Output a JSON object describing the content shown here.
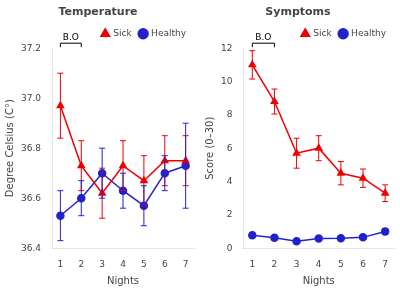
{
  "chart_data": [
    {
      "type": "line",
      "title": "Temperature",
      "xlabel": "Nights",
      "ylabel": "Degree Celsius (C°)",
      "x": [
        1,
        2,
        3,
        4,
        5,
        6,
        7
      ],
      "xlim": [
        0.6,
        7.4
      ],
      "xticks": [
        1,
        2,
        3,
        4,
        5,
        6,
        7
      ],
      "ylim": [
        36.4,
        37.2
      ],
      "yticks": [
        36.4,
        36.6,
        36.8,
        {
          "value": 37.0,
          "label": "37.0"
        },
        37.2
      ],
      "grid": false,
      "legend": "upper right",
      "series": [
        {
          "name": "Sick",
          "color": "#EE0000",
          "marker": "triangle",
          "values": [
            36.97,
            36.73,
            36.62,
            36.73,
            36.67,
            36.75,
            36.75
          ],
          "yerr": [
            0.13,
            0.1,
            0.1,
            0.1,
            0.1,
            0.1,
            0.1
          ]
        },
        {
          "name": "Healthy",
          "color": "#2222CC",
          "marker": "circle",
          "values": [
            36.53,
            36.6,
            36.7,
            36.63,
            36.57,
            36.7,
            36.73
          ],
          "yerr": [
            0.1,
            0.07,
            0.1,
            0.07,
            0.08,
            0.07,
            0.17
          ]
        }
      ],
      "annotations": [
        {
          "text": "B.O"
        }
      ]
    },
    {
      "type": "line",
      "title": "Symptoms",
      "xlabel": "Nights",
      "ylabel": "Score (0–30)",
      "x": [
        1,
        2,
        3,
        4,
        5,
        6,
        7
      ],
      "xlim": [
        0.6,
        7.4
      ],
      "xticks": [
        1,
        2,
        3,
        4,
        5,
        6,
        7
      ],
      "ylim": [
        0,
        12
      ],
      "yticks": [
        0,
        2,
        4,
        6,
        8,
        10,
        12
      ],
      "grid": false,
      "legend": "upper right",
      "series": [
        {
          "name": "Sick",
          "color": "#EE0000",
          "marker": "triangle",
          "values": [
            11.0,
            8.8,
            5.7,
            6.0,
            4.5,
            4.2,
            3.3
          ],
          "yerr": [
            0.85,
            0.75,
            0.9,
            0.75,
            0.7,
            0.55,
            0.5
          ]
        },
        {
          "name": "Healthy",
          "color": "#2222CC",
          "marker": "circle",
          "values": [
            0.78,
            0.62,
            0.42,
            0.58,
            0.6,
            0.65,
            1.0
          ],
          "yerr": [
            0.14,
            0.12,
            0.1,
            0.12,
            0.12,
            0.12,
            0.18
          ]
        }
      ],
      "annotations": [
        {
          "text": "B.O"
        }
      ]
    }
  ]
}
